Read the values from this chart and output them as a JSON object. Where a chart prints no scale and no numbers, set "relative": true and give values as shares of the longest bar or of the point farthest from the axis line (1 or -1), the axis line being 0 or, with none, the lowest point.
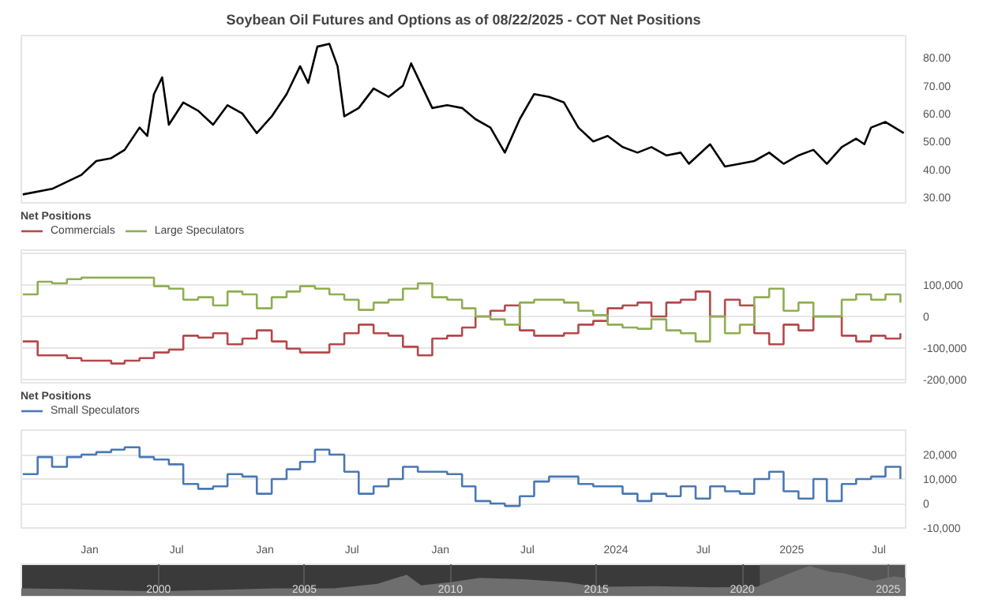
{
  "chart_data": [
    {
      "type": "line",
      "title": "Soybean Oil Futures and Options as of 08/22/2025 - COT Net Positions",
      "tick_labels": "y",
      "grid": false,
      "legend": false,
      "x": [
        "2020-08-15",
        "2020-10-15",
        "2020-12-15",
        "2021-01-15",
        "2021-02-15",
        "2021-03-15",
        "2021-04-15",
        "2021-05-01",
        "2021-05-15",
        "2021-06-01",
        "2021-06-15",
        "2021-07-15",
        "2021-08-15",
        "2021-09-15",
        "2021-10-15",
        "2021-11-15",
        "2021-12-15",
        "2022-01-15",
        "2022-02-15",
        "2022-03-15",
        "2022-04-01",
        "2022-04-20",
        "2022-05-15",
        "2022-06-01",
        "2022-06-15",
        "2022-07-15",
        "2022-08-15",
        "2022-09-15",
        "2022-10-15",
        "2022-11-01",
        "2022-12-15",
        "2023-01-15",
        "2023-02-15",
        "2023-03-15",
        "2023-04-15",
        "2023-05-15",
        "2023-06-15",
        "2023-07-15",
        "2023-08-15",
        "2023-09-15",
        "2023-10-15",
        "2023-11-15",
        "2023-12-15",
        "2024-01-15",
        "2024-02-15",
        "2024-03-15",
        "2024-04-15",
        "2024-05-15",
        "2024-06-01",
        "2024-07-15",
        "2024-08-15",
        "2024-09-15",
        "2024-10-15",
        "2024-11-15",
        "2024-12-15",
        "2025-01-15",
        "2025-02-15",
        "2025-03-15",
        "2025-04-15",
        "2025-05-15",
        "2025-06-01",
        "2025-06-15",
        "2025-07-15",
        "2025-08-22"
      ],
      "series": [
        {
          "color": "#000000",
          "values": [
            31,
            33,
            38,
            43,
            44,
            47,
            55,
            52,
            67,
            73,
            56,
            64,
            61,
            56,
            63,
            60,
            53,
            59,
            67,
            77,
            71,
            84,
            85,
            77,
            59,
            62,
            69,
            66,
            70,
            78,
            62,
            63,
            62,
            58,
            55,
            46,
            58,
            67,
            66,
            64,
            55,
            50,
            52,
            48,
            46,
            48,
            45,
            46,
            42,
            49,
            41,
            42,
            43,
            46,
            42,
            45,
            47,
            42,
            48,
            51,
            49,
            55,
            57,
            53
          ]
        }
      ],
      "ylim": [
        28,
        88
      ],
      "yticks": [
        {
          "value": 30,
          "label": "30.00"
        },
        {
          "value": 40,
          "label": "40.00"
        },
        {
          "value": 50,
          "label": "50.00"
        },
        {
          "value": 60,
          "label": "60.00"
        },
        {
          "value": 70,
          "label": "70.00"
        },
        {
          "value": 80,
          "label": "80.00"
        }
      ],
      "xlim": [
        "2020-08-12",
        "2025-08-26"
      ]
    },
    {
      "type": "step",
      "legend_title": "Net Positions",
      "legend": "top left",
      "tick_labels": "y",
      "grid": "y",
      "x": [
        "2020-08-15",
        "2020-09-15",
        "2020-10-15",
        "2020-11-15",
        "2020-12-15",
        "2021-01-15",
        "2021-02-15",
        "2021-03-15",
        "2021-04-15",
        "2021-05-15",
        "2021-06-15",
        "2021-07-15",
        "2021-08-15",
        "2021-09-15",
        "2021-10-15",
        "2021-11-15",
        "2021-12-15",
        "2022-01-15",
        "2022-02-15",
        "2022-03-15",
        "2022-04-15",
        "2022-05-15",
        "2022-06-15",
        "2022-07-15",
        "2022-08-15",
        "2022-09-15",
        "2022-10-15",
        "2022-11-15",
        "2022-12-15",
        "2023-01-15",
        "2023-02-15",
        "2023-03-15",
        "2023-04-15",
        "2023-05-15",
        "2023-06-15",
        "2023-07-15",
        "2023-08-15",
        "2023-09-15",
        "2023-10-15",
        "2023-11-15",
        "2023-12-15",
        "2024-01-15",
        "2024-02-15",
        "2024-03-15",
        "2024-04-15",
        "2024-05-15",
        "2024-06-15",
        "2024-07-15",
        "2024-08-15",
        "2024-09-15",
        "2024-10-15",
        "2024-11-15",
        "2024-12-15",
        "2025-01-15",
        "2025-02-15",
        "2025-03-15",
        "2025-04-15",
        "2025-05-15",
        "2025-06-15",
        "2025-07-15",
        "2025-08-15"
      ],
      "series": [
        {
          "name": "Commercials",
          "color": "#b5484b",
          "values": [
            -79000,
            -123000,
            -123000,
            -132000,
            -140000,
            -140000,
            -149000,
            -140000,
            -132000,
            -114000,
            -105000,
            -61000,
            -67000,
            -53000,
            -88000,
            -70000,
            -44000,
            -79000,
            -102000,
            -114000,
            -114000,
            -88000,
            -53000,
            -26000,
            -53000,
            -61000,
            -96000,
            -123000,
            -70000,
            -61000,
            -35000,
            0,
            18000,
            35000,
            -44000,
            -61000,
            -61000,
            -53000,
            -26000,
            -14000,
            26000,
            35000,
            44000,
            0,
            44000,
            53000,
            79000,
            0,
            53000,
            35000,
            -53000,
            -88000,
            -26000,
            -44000,
            0,
            0,
            -61000,
            -79000,
            -61000,
            -70000,
            -53000
          ]
        },
        {
          "name": "Large Speculators",
          "color": "#8fae52",
          "values": [
            70000,
            110000,
            105000,
            118000,
            123000,
            123000,
            123000,
            123000,
            123000,
            96000,
            88000,
            53000,
            61000,
            35000,
            79000,
            70000,
            26000,
            61000,
            79000,
            96000,
            88000,
            70000,
            53000,
            21000,
            44000,
            53000,
            88000,
            105000,
            61000,
            53000,
            26000,
            0,
            -9000,
            -26000,
            44000,
            53000,
            53000,
            44000,
            18000,
            4000,
            -26000,
            -35000,
            -39000,
            -9000,
            -44000,
            -53000,
            -79000,
            0,
            -53000,
            -26000,
            61000,
            88000,
            18000,
            44000,
            0,
            0,
            53000,
            70000,
            53000,
            70000,
            44000
          ]
        }
      ],
      "ylim": [
        -210000,
        210000
      ],
      "yticks": [
        {
          "value": -200000,
          "label": "-200,000"
        },
        {
          "value": -100000,
          "label": "-100,000"
        },
        {
          "value": 0,
          "label": "0"
        },
        {
          "value": 100000,
          "label": "100,000"
        },
        {
          "value": 200000,
          "label": null
        }
      ],
      "xlim": [
        "2020-08-12",
        "2025-08-26"
      ]
    },
    {
      "type": "step",
      "legend_title": "Net Positions",
      "legend": "top left",
      "grid": "y",
      "x": [
        "2020-08-15",
        "2020-09-15",
        "2020-10-15",
        "2020-11-15",
        "2020-12-15",
        "2021-01-15",
        "2021-02-15",
        "2021-03-15",
        "2021-04-15",
        "2021-05-15",
        "2021-06-15",
        "2021-07-15",
        "2021-08-15",
        "2021-09-15",
        "2021-10-15",
        "2021-11-15",
        "2021-12-15",
        "2022-01-15",
        "2022-02-15",
        "2022-03-15",
        "2022-04-15",
        "2022-05-15",
        "2022-06-15",
        "2022-07-15",
        "2022-08-15",
        "2022-09-15",
        "2022-10-15",
        "2022-11-15",
        "2022-12-15",
        "2023-01-15",
        "2023-02-15",
        "2023-03-15",
        "2023-04-15",
        "2023-05-15",
        "2023-06-15",
        "2023-07-15",
        "2023-08-15",
        "2023-09-15",
        "2023-10-15",
        "2023-11-15",
        "2023-12-15",
        "2024-01-15",
        "2024-02-15",
        "2024-03-15",
        "2024-04-15",
        "2024-05-15",
        "2024-06-15",
        "2024-07-15",
        "2024-08-15",
        "2024-09-15",
        "2024-10-15",
        "2024-11-15",
        "2024-12-15",
        "2025-01-15",
        "2025-02-15",
        "2025-03-15",
        "2025-04-15",
        "2025-05-15",
        "2025-06-15",
        "2025-07-15",
        "2025-08-15"
      ],
      "series": [
        {
          "name": "Small Speculators",
          "color": "#4a78b3",
          "values": [
            12000,
            19000,
            15000,
            19000,
            20000,
            21000,
            22000,
            23000,
            19000,
            18000,
            16000,
            8000,
            6000,
            7000,
            12000,
            11000,
            4000,
            10000,
            14000,
            17000,
            22000,
            20000,
            13000,
            4000,
            7000,
            10000,
            15000,
            13000,
            13000,
            12000,
            7000,
            1000,
            0,
            -1000,
            3000,
            9000,
            11000,
            11000,
            8000,
            7000,
            7000,
            4000,
            1000,
            4000,
            3000,
            7000,
            2000,
            7000,
            5000,
            4000,
            10000,
            13000,
            5000,
            2000,
            10000,
            1000,
            8000,
            10000,
            11000,
            15000,
            10000
          ]
        }
      ],
      "ylim": [
        -10000,
        30000
      ],
      "yticks": [
        {
          "value": -10000,
          "label": "-10,000"
        },
        0,
        {
          "value": 10000,
          "label": "10,000"
        },
        {
          "value": 20000,
          "label": "20,000"
        },
        {
          "value": 30000,
          "label": null
        }
      ],
      "xlim": [
        "2020-08-12",
        "2025-08-26"
      ],
      "xticks": [
        {
          "value": "2021-01-01",
          "label": "Jan"
        },
        {
          "value": "2021-07-01",
          "label": "Jul"
        },
        {
          "value": "2022-01-01",
          "label": "Jan"
        },
        {
          "value": "2022-07-01",
          "label": "Jul"
        },
        {
          "value": "2023-01-01",
          "label": "Jan"
        },
        {
          "value": "2023-07-01",
          "label": "Jul"
        },
        {
          "value": "2024-01-01",
          "label": "2024"
        },
        {
          "value": "2024-07-01",
          "label": "Jul"
        },
        {
          "value": "2025-01-01",
          "label": "2025"
        },
        {
          "value": "2025-07-01",
          "label": "Jul"
        }
      ]
    },
    {
      "type": "area",
      "relative": true,
      "grid": "x",
      "legend": false,
      "x": [
        1995.3,
        1997,
        1999,
        2000,
        2002,
        2004,
        2006,
        2007.5,
        2008.5,
        2009,
        2010,
        2011,
        2012.5,
        2014,
        2015,
        2017,
        2019,
        2020.5,
        2021.5,
        2022.3,
        2023,
        2023.5,
        2024.5,
        2025.2,
        2025.6
      ],
      "series": [
        {
          "color": "#6e6e6e",
          "values": [
            0.25,
            0.22,
            0.17,
            0.15,
            0.2,
            0.25,
            0.25,
            0.4,
            0.7,
            0.35,
            0.45,
            0.6,
            0.55,
            0.45,
            0.3,
            0.32,
            0.28,
            0.3,
            0.7,
            1.0,
            0.8,
            0.75,
            0.5,
            0.65,
            0.6
          ]
        }
      ],
      "xlim": [
        1995.3,
        2025.6
      ],
      "xticks": [
        2000,
        2005,
        2010,
        2015,
        2020,
        2025
      ],
      "bands": [
        {
          "axis": "x",
          "from": 2020.6,
          "to": 2025.6,
          "color": "#8a8a8a"
        }
      ]
    }
  ]
}
